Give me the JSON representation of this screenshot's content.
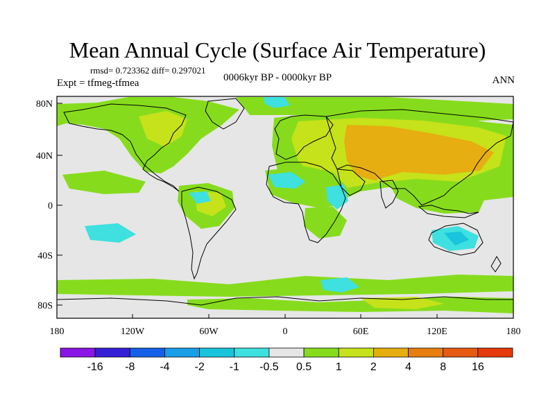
{
  "title": "Mean Annual Cycle (Surface Air Temperature)",
  "stats": "rmsd= 0.723362 diff= 0.297021",
  "experiment": "Expt = tfmeg-tfmea",
  "period": "0006kyr BP - 0000kyr BP",
  "season": "ANN",
  "lat_ticks": [
    "80N",
    "40N",
    "0",
    "40S",
    "80S"
  ],
  "lon_ticks": [
    "180",
    "120W",
    "60W",
    "0",
    "60E",
    "120E",
    "180"
  ],
  "colorbar": {
    "labels": [
      "-16",
      "-8",
      "-4",
      "-2",
      "-1",
      "-0.5",
      "0.5",
      "1",
      "2",
      "4",
      "8",
      "16"
    ],
    "colors": [
      "#8a16e6",
      "#3520d6",
      "#1560e8",
      "#199ee8",
      "#19c4dc",
      "#3ee0e0",
      "#e6e6e6",
      "#86dc1c",
      "#c6e21a",
      "#e6ae10",
      "#e67e10",
      "#e65a12",
      "#e63a0c"
    ]
  },
  "colors": {
    "ocean": "#e6e6e6",
    "warm_small": "#86dc1c",
    "warm_mid": "#c6e21a",
    "warm_large": "#e6ae10",
    "cool_small": "#3ee0e0",
    "cool_mid": "#19c4dc"
  }
}
